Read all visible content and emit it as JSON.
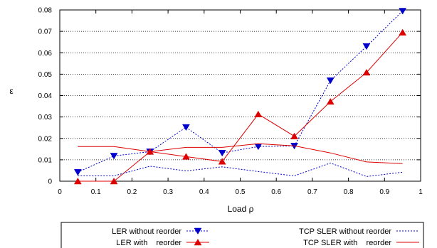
{
  "chart_data": {
    "type": "line",
    "xlabel": "Load ρ",
    "ylabel": "ε",
    "xlim": [
      0,
      1
    ],
    "ylim": [
      0,
      0.08
    ],
    "x_ticks": [
      0,
      0.1,
      0.2,
      0.3,
      0.4,
      0.5,
      0.6,
      0.7,
      0.8,
      0.9,
      1
    ],
    "x_tick_labels": [
      "0",
      "0.1",
      "0.2",
      "0.3",
      "0.4",
      "0.5",
      "0.6",
      "0.7",
      "0.8",
      "0.9",
      "1"
    ],
    "y_ticks": [
      0,
      0.01,
      0.02,
      0.03,
      0.04,
      0.05,
      0.06,
      0.07,
      0.08
    ],
    "y_tick_labels": [
      "0",
      "0.01",
      "0.02",
      "0.03",
      "0.04",
      "0.05",
      "0.06",
      "0.07",
      "0.08"
    ],
    "grid": "horizontal dotted",
    "legend_position": "bottom",
    "series": [
      {
        "name": "LER without reorder",
        "color": "#0000cc",
        "line_style": "dotted",
        "marker": "triangle-down",
        "x": [
          0.05,
          0.15,
          0.25,
          0.35,
          0.45,
          0.55,
          0.65,
          0.75,
          0.85,
          0.95
        ],
        "values": [
          0.0042,
          0.0118,
          0.0138,
          0.0252,
          0.0132,
          0.0162,
          0.0165,
          0.047,
          0.063,
          0.0795
        ]
      },
      {
        "name": "LER with    reorder",
        "color": "#dd0000",
        "line_style": "solid",
        "marker": "triangle-up",
        "x": [
          0.05,
          0.15,
          0.25,
          0.35,
          0.45,
          0.55,
          0.65,
          0.75,
          0.85,
          0.95
        ],
        "values": [
          0.0,
          0.0,
          0.0138,
          0.0115,
          0.0092,
          0.0313,
          0.021,
          0.0372,
          0.0508,
          0.0695
        ]
      },
      {
        "name": "TCP SLER without reorder",
        "color": "#0000cc",
        "line_style": "dotted",
        "marker": "none",
        "x": [
          0.05,
          0.15,
          0.25,
          0.35,
          0.45,
          0.55,
          0.65,
          0.75,
          0.85,
          0.95
        ],
        "values": [
          0.0025,
          0.0025,
          0.007,
          0.0048,
          0.0067,
          0.0045,
          0.0025,
          0.0085,
          0.0022,
          0.0042
        ]
      },
      {
        "name": "TCP SLER with    reorder",
        "color": "#dd0000",
        "line_style": "solid",
        "marker": "none",
        "x": [
          0.05,
          0.15,
          0.25,
          0.35,
          0.45,
          0.55,
          0.65,
          0.75,
          0.85,
          0.95
        ],
        "values": [
          0.0162,
          0.0162,
          0.0138,
          0.0158,
          0.0158,
          0.0175,
          0.0165,
          0.0132,
          0.009,
          0.0082
        ]
      }
    ]
  }
}
